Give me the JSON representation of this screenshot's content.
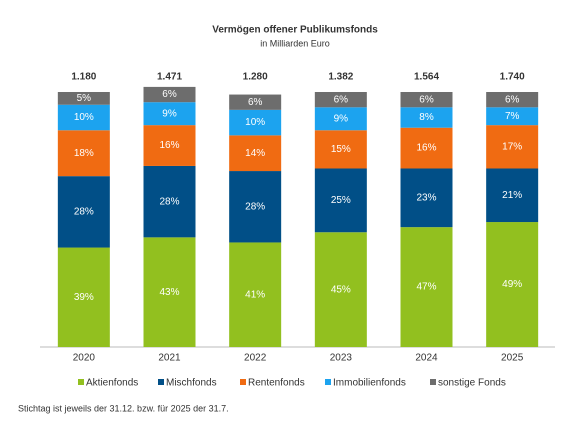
{
  "chart_data": {
    "type": "stacked_bar_100",
    "title": "Vermögen offener Publikumsfonds",
    "subtitle": "in Milliarden Euro",
    "categories": [
      "2020",
      "2021",
      "2022",
      "2023",
      "2024",
      "2025"
    ],
    "totals": [
      1180,
      1471,
      1280,
      1382,
      1564,
      1740
    ],
    "totals_labels": [
      "1.180",
      "1.471",
      "1.280",
      "1.382",
      "1.564",
      "1.740"
    ],
    "series": [
      {
        "name": "Aktienfonds",
        "color": "#92c01f",
        "values": [
          39,
          43,
          41,
          45,
          47,
          49
        ],
        "value_labels": [
          "39%",
          "43%",
          "41%",
          "45%",
          "47%",
          "49%"
        ]
      },
      {
        "name": "Mischfonds",
        "color": "#014f87",
        "values": [
          28,
          28,
          28,
          25,
          23,
          21
        ],
        "value_labels": [
          "28%",
          "28%",
          "28%",
          "25%",
          "23%",
          "21%"
        ]
      },
      {
        "name": "Rentenfonds",
        "color": "#f06b12",
        "values": [
          18,
          16,
          14,
          15,
          16,
          17
        ],
        "value_labels": [
          "18%",
          "16%",
          "14%",
          "15%",
          "16%",
          "17%"
        ]
      },
      {
        "name": "Immobilienfonds",
        "color": "#1ca3ef",
        "values": [
          10,
          9,
          10,
          9,
          8,
          7
        ],
        "value_labels": [
          "10%",
          "9%",
          "10%",
          "9%",
          "8%",
          "7%"
        ]
      },
      {
        "name": "sonstige Fonds",
        "color": "#6d6d6d",
        "values": [
          5,
          6,
          6,
          6,
          6,
          6
        ],
        "value_labels": [
          "5%",
          "6%",
          "6%",
          "6%",
          "6%",
          "6%"
        ]
      }
    ],
    "footnote": "Stichtag ist jeweils der 31.12. bzw. für 2025 der 31.7."
  }
}
